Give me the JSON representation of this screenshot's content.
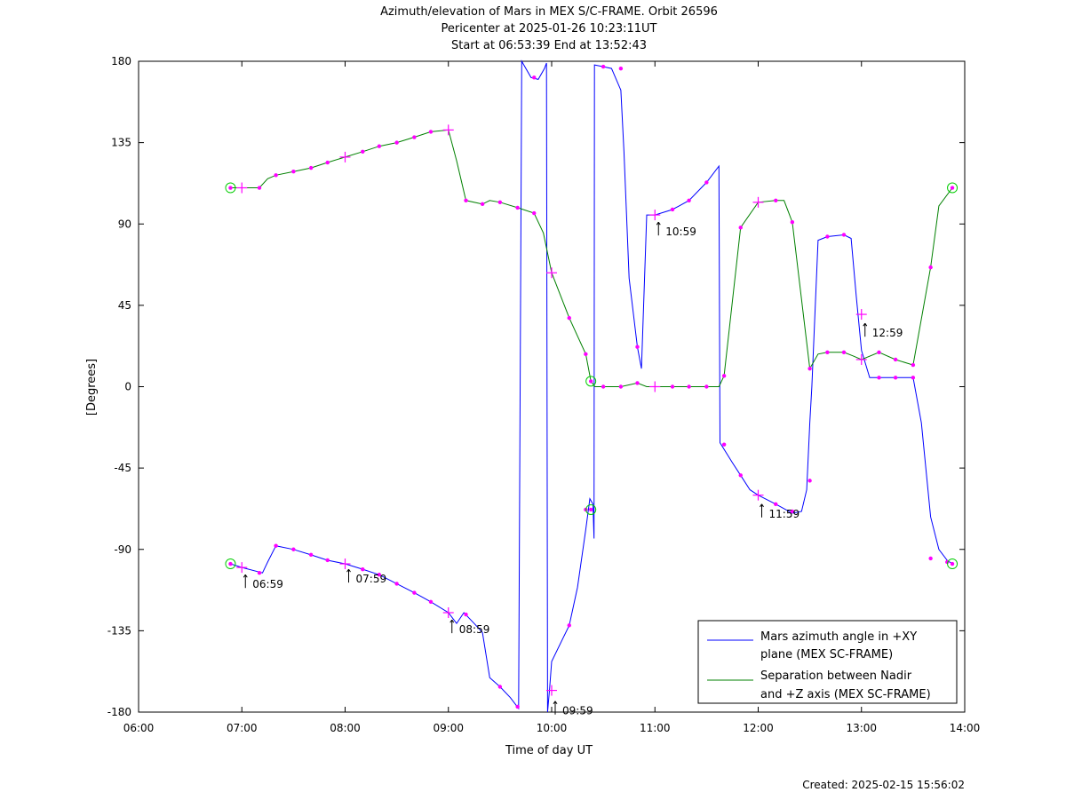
{
  "chart_data": {
    "type": "line",
    "title": [
      "Azimuth/elevation of Mars in MEX S/C-FRAME.  Orbit 26596",
      "Pericenter at 2025-01-26 10:23:11UT",
      "Start at 06:53:39 End at 13:52:43"
    ],
    "xlabel": "Time of day UT",
    "ylabel": "[Degrees]",
    "xlim": [
      6.0,
      14.0
    ],
    "ylim": [
      -180,
      180
    ],
    "x_unit": "hours of day UT",
    "xticks": [
      {
        "v": 6,
        "label": "06:00"
      },
      {
        "v": 7,
        "label": "07:00"
      },
      {
        "v": 8,
        "label": "08:00"
      },
      {
        "v": 9,
        "label": "09:00"
      },
      {
        "v": 10,
        "label": "10:00"
      },
      {
        "v": 11,
        "label": "11:00"
      },
      {
        "v": 12,
        "label": "12:00"
      },
      {
        "v": 13,
        "label": "13:00"
      },
      {
        "v": 14,
        "label": "14:00"
      }
    ],
    "yticks": [
      {
        "v": 180,
        "label": "180"
      },
      {
        "v": 135,
        "label": "135"
      },
      {
        "v": 90,
        "label": "90"
      },
      {
        "v": 45,
        "label": "45"
      },
      {
        "v": 0,
        "label": "0"
      },
      {
        "v": -45,
        "label": "-45"
      },
      {
        "v": -90,
        "label": "-90"
      },
      {
        "v": -135,
        "label": "-135"
      },
      {
        "v": -180,
        "label": "-180"
      }
    ],
    "grid": false,
    "legend_position": "bottom-right",
    "series": [
      {
        "name": "Mars azimuth angle in +XY plane (MEX SC-FRAME)",
        "legend_lines": [
          "Mars azimuth angle in +XY",
          "plane (MEX SC-FRAME)"
        ],
        "color": "#0000ff",
        "points": [
          [
            6.89,
            -98
          ],
          [
            7.0,
            -100
          ],
          [
            7.2,
            -103
          ],
          [
            7.25,
            -97
          ],
          [
            7.33,
            -88
          ],
          [
            7.5,
            -90
          ],
          [
            7.67,
            -93
          ],
          [
            7.83,
            -96
          ],
          [
            8.0,
            -98
          ],
          [
            8.17,
            -101
          ],
          [
            8.33,
            -104
          ],
          [
            8.5,
            -109
          ],
          [
            8.67,
            -114
          ],
          [
            8.83,
            -119
          ],
          [
            9.0,
            -125
          ],
          [
            9.08,
            -131
          ],
          [
            9.15,
            -125
          ],
          [
            9.25,
            -131
          ],
          [
            9.33,
            -136
          ],
          [
            9.4,
            -161
          ],
          [
            9.5,
            -166
          ],
          [
            9.6,
            -172
          ],
          [
            9.68,
            -178
          ],
          [
            9.71,
            180
          ],
          [
            9.8,
            171
          ],
          [
            9.87,
            170
          ],
          [
            9.93,
            176
          ],
          [
            9.95,
            179
          ],
          [
            9.96,
            -180
          ],
          [
            9.98,
            -167
          ],
          [
            10.0,
            -152
          ],
          [
            10.17,
            -132
          ],
          [
            10.25,
            -111
          ],
          [
            10.33,
            -79
          ],
          [
            10.37,
            -62
          ],
          [
            10.4,
            -65
          ],
          [
            10.41,
            -84
          ],
          [
            10.415,
            178
          ],
          [
            10.5,
            177
          ],
          [
            10.58,
            176
          ],
          [
            10.67,
            164
          ],
          [
            10.7,
            130
          ],
          [
            10.75,
            60
          ],
          [
            10.83,
            22
          ],
          [
            10.87,
            10
          ],
          [
            10.92,
            95
          ],
          [
            11.0,
            95
          ],
          [
            11.17,
            98
          ],
          [
            11.33,
            103
          ],
          [
            11.5,
            113
          ],
          [
            11.62,
            122
          ],
          [
            11.63,
            -31
          ],
          [
            11.75,
            -42
          ],
          [
            11.83,
            -49
          ],
          [
            11.92,
            -57
          ],
          [
            12.0,
            -60
          ],
          [
            12.17,
            -65
          ],
          [
            12.33,
            -70
          ],
          [
            12.42,
            -69
          ],
          [
            12.47,
            -57
          ],
          [
            12.5,
            -20
          ],
          [
            12.52,
            0
          ],
          [
            12.58,
            81
          ],
          [
            12.67,
            83
          ],
          [
            12.83,
            84
          ],
          [
            12.9,
            82
          ],
          [
            12.95,
            50
          ],
          [
            13.0,
            20
          ],
          [
            13.08,
            5
          ],
          [
            13.17,
            5
          ],
          [
            13.33,
            5
          ],
          [
            13.5,
            5
          ],
          [
            13.58,
            -20
          ],
          [
            13.67,
            -72
          ],
          [
            13.75,
            -90
          ],
          [
            13.83,
            -96
          ],
          [
            13.88,
            -98
          ]
        ]
      },
      {
        "name": "Separation between Nadir and +Z axis (MEX SC-FRAME)",
        "legend_lines": [
          "Separation between Nadir",
          "and +Z axis (MEX SC-FRAME)"
        ],
        "color": "#008000",
        "points": [
          [
            6.89,
            110
          ],
          [
            7.0,
            110
          ],
          [
            7.17,
            110
          ],
          [
            7.25,
            115
          ],
          [
            7.33,
            117
          ],
          [
            7.5,
            119
          ],
          [
            7.67,
            121
          ],
          [
            7.83,
            124
          ],
          [
            8.0,
            127
          ],
          [
            8.17,
            130
          ],
          [
            8.33,
            133
          ],
          [
            8.5,
            135
          ],
          [
            8.67,
            138
          ],
          [
            8.83,
            141
          ],
          [
            9.0,
            142
          ],
          [
            9.08,
            125
          ],
          [
            9.17,
            103
          ],
          [
            9.33,
            101
          ],
          [
            9.4,
            103
          ],
          [
            9.5,
            102
          ],
          [
            9.67,
            99
          ],
          [
            9.83,
            96
          ],
          [
            9.92,
            85
          ],
          [
            10.0,
            63
          ],
          [
            10.17,
            38
          ],
          [
            10.33,
            18
          ],
          [
            10.38,
            3
          ],
          [
            10.42,
            0
          ],
          [
            10.5,
            0
          ],
          [
            10.67,
            0
          ],
          [
            10.83,
            2
          ],
          [
            10.92,
            0
          ],
          [
            11.0,
            0
          ],
          [
            11.17,
            0
          ],
          [
            11.33,
            0
          ],
          [
            11.5,
            0
          ],
          [
            11.62,
            0
          ],
          [
            11.67,
            6
          ],
          [
            11.83,
            88
          ],
          [
            12.0,
            102
          ],
          [
            12.17,
            103
          ],
          [
            12.25,
            103
          ],
          [
            12.33,
            91
          ],
          [
            12.5,
            10
          ],
          [
            12.58,
            18
          ],
          [
            12.67,
            19
          ],
          [
            12.83,
            19
          ],
          [
            12.92,
            17
          ],
          [
            13.0,
            15
          ],
          [
            13.17,
            19
          ],
          [
            13.33,
            15
          ],
          [
            13.5,
            12
          ],
          [
            13.67,
            66
          ],
          [
            13.75,
            100
          ],
          [
            13.88,
            110
          ]
        ]
      }
    ],
    "markers": {
      "color": "#ff00ff",
      "azimuth_dots": [
        [
          7.17,
          -103
        ],
        [
          7.33,
          -88
        ],
        [
          7.5,
          -90
        ],
        [
          7.67,
          -93
        ],
        [
          7.83,
          -96
        ],
        [
          8.17,
          -101
        ],
        [
          8.33,
          -104
        ],
        [
          8.5,
          -109
        ],
        [
          8.67,
          -114
        ],
        [
          8.83,
          -119
        ],
        [
          9.17,
          -126
        ],
        [
          9.5,
          -166
        ],
        [
          9.67,
          -177
        ],
        [
          9.83,
          171
        ],
        [
          10.17,
          -132
        ],
        [
          10.33,
          -68
        ],
        [
          10.5,
          177
        ],
        [
          10.67,
          176
        ],
        [
          10.83,
          22
        ],
        [
          11.17,
          98
        ],
        [
          11.33,
          103
        ],
        [
          11.5,
          113
        ],
        [
          11.67,
          -32
        ],
        [
          11.83,
          -49
        ],
        [
          12.17,
          -65
        ],
        [
          12.33,
          -69
        ],
        [
          12.5,
          -52
        ],
        [
          12.67,
          83
        ],
        [
          12.83,
          84
        ],
        [
          13.17,
          5
        ],
        [
          13.33,
          5
        ],
        [
          13.5,
          5
        ],
        [
          13.67,
          -95
        ],
        [
          13.83,
          -97
        ]
      ],
      "separation_dots": [
        [
          7.17,
          110
        ],
        [
          7.33,
          117
        ],
        [
          7.5,
          119
        ],
        [
          7.67,
          121
        ],
        [
          7.83,
          124
        ],
        [
          8.17,
          130
        ],
        [
          8.33,
          133
        ],
        [
          8.5,
          135
        ],
        [
          8.67,
          138
        ],
        [
          8.83,
          141
        ],
        [
          9.17,
          103
        ],
        [
          9.33,
          101
        ],
        [
          9.5,
          102
        ],
        [
          9.67,
          99
        ],
        [
          9.83,
          96
        ],
        [
          10.17,
          38
        ],
        [
          10.33,
          18
        ],
        [
          10.5,
          0
        ],
        [
          10.67,
          0
        ],
        [
          10.83,
          2
        ],
        [
          11.17,
          0
        ],
        [
          11.33,
          0
        ],
        [
          11.5,
          0
        ],
        [
          11.67,
          6
        ],
        [
          11.83,
          88
        ],
        [
          12.17,
          103
        ],
        [
          12.33,
          91
        ],
        [
          12.5,
          10
        ],
        [
          12.67,
          19
        ],
        [
          12.83,
          19
        ],
        [
          13.17,
          19
        ],
        [
          13.33,
          15
        ],
        [
          13.5,
          12
        ],
        [
          13.67,
          66
        ]
      ],
      "hour_crosses": [
        [
          7.0,
          -100
        ],
        [
          8.0,
          -98
        ],
        [
          9.0,
          -125
        ],
        [
          10.0,
          -168
        ],
        [
          11.0,
          95
        ],
        [
          12.0,
          -60
        ],
        [
          13.0,
          40
        ],
        [
          7.0,
          110
        ],
        [
          8.0,
          127
        ],
        [
          9.0,
          142
        ],
        [
          10.0,
          63
        ],
        [
          11.0,
          0
        ],
        [
          12.0,
          102
        ],
        [
          13.0,
          15
        ]
      ],
      "endpoint_circles": [
        [
          6.89,
          -98
        ],
        [
          6.89,
          110
        ],
        [
          13.88,
          -98
        ],
        [
          13.88,
          110
        ],
        [
          10.38,
          3
        ],
        [
          10.38,
          -68
        ]
      ]
    },
    "annotations": [
      {
        "x": 7.0,
        "y": -103,
        "text": "06:59"
      },
      {
        "x": 8.0,
        "y": -100,
        "text": "07:59"
      },
      {
        "x": 9.0,
        "y": -128,
        "text": "08:59"
      },
      {
        "x": 10.0,
        "y": -173,
        "text": "09:59"
      },
      {
        "x": 11.0,
        "y": 92,
        "text": "10:59"
      },
      {
        "x": 12.0,
        "y": -64,
        "text": "11:59"
      },
      {
        "x": 13.0,
        "y": 36,
        "text": "12:59"
      }
    ]
  },
  "footer": {
    "created": "Created: 2025-02-15 15:56:02"
  }
}
